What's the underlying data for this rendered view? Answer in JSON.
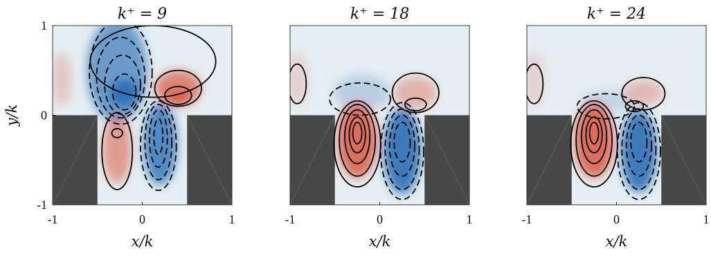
{
  "chart_data": [
    {
      "type": "contour",
      "title": "k⁺ = 9",
      "xlabel": "x/k",
      "ylabel": "y/k",
      "xlim": [
        -1,
        1
      ],
      "ylim": [
        -1,
        1
      ],
      "x_ticks": [
        "-1",
        "0",
        "1"
      ],
      "y_ticks": [
        "-1",
        "0",
        "1"
      ],
      "cavity_x_range": [
        -0.5,
        0.5
      ],
      "grid": false
    },
    {
      "type": "contour",
      "title": "k⁺ = 18",
      "xlabel": "x/k",
      "ylabel": "",
      "xlim": [
        -1,
        1
      ],
      "ylim": [
        -1,
        1
      ],
      "x_ticks": [
        "-1",
        "0",
        "1"
      ],
      "y_ticks": [],
      "cavity_x_range": [
        -0.5,
        0.5
      ],
      "grid": false
    },
    {
      "type": "contour",
      "title": "k⁺ = 24",
      "xlabel": "x/k",
      "ylabel": "",
      "xlim": [
        -1,
        1
      ],
      "ylim": [
        -1,
        1
      ],
      "x_ticks": [
        "-1",
        "0",
        "1"
      ],
      "y_ticks": [],
      "cavity_x_range": [
        -0.5,
        0.5
      ],
      "grid": false
    }
  ],
  "colors": {
    "background_field": "#e6eff3",
    "solid_wall": "#474747",
    "positive_fill": "#d9573f",
    "negative_fill": "#2b6fb5",
    "contour_line": "#000000"
  }
}
